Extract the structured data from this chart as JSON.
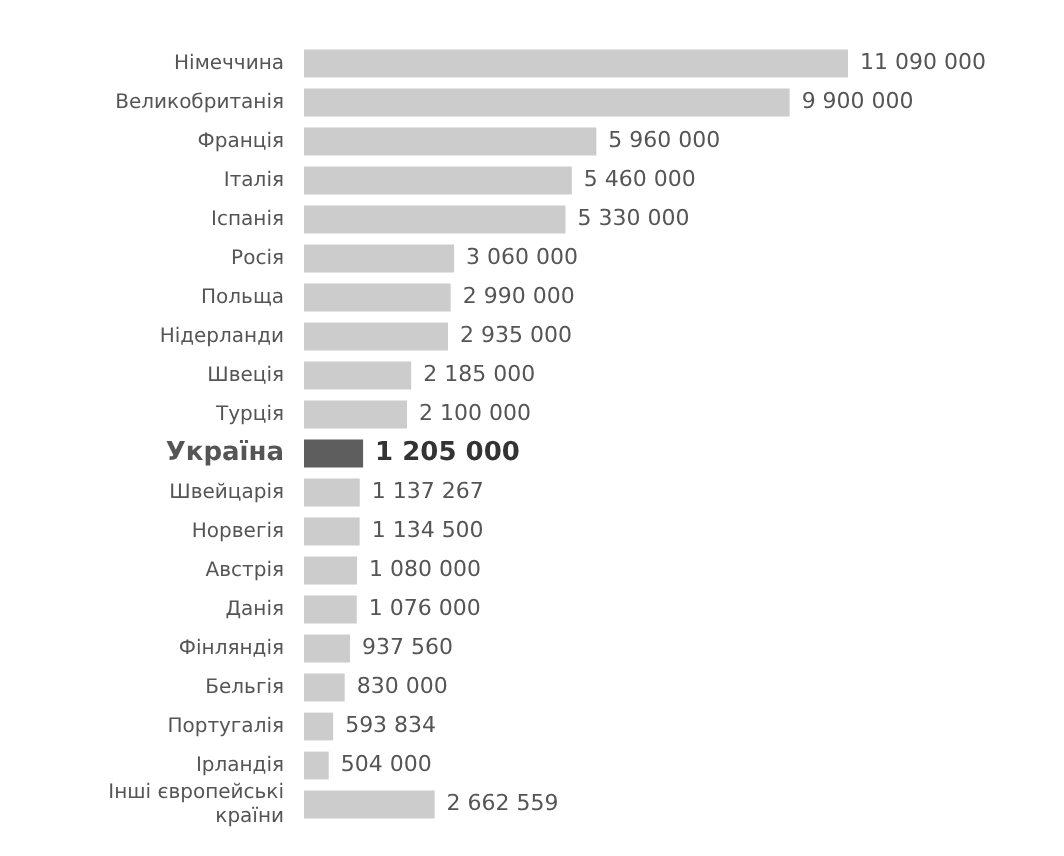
{
  "chart_data": {
    "type": "bar",
    "orientation": "horizontal",
    "categories": [
      "Німеччина",
      "Великобританія",
      "Франція",
      "Італія",
      "Іспанія",
      "Росія",
      "Польща",
      "Нідерланди",
      "Швеція",
      "Турція",
      "Україна",
      "Швейцарія",
      "Норвегія",
      "Австрія",
      "Данія",
      "Фінляндія",
      "Бельгія",
      "Португалія",
      "Ірландія",
      "Інші європейські країни"
    ],
    "values": [
      11090000,
      9900000,
      5960000,
      5460000,
      5330000,
      3060000,
      2990000,
      2935000,
      2185000,
      2100000,
      1205000,
      1137267,
      1134500,
      1080000,
      1076000,
      937560,
      830000,
      593834,
      504000,
      2662559
    ],
    "value_labels": [
      "11 090 000",
      "9 900 000",
      "5 960 000",
      "5 460 000",
      "5 330 000",
      "3 060 000",
      "2 990 000",
      "2 935 000",
      "2 185 000",
      "2 100 000",
      "1 205 000",
      "1 137 267",
      "1 134 500",
      "1 080 000",
      "1 076 000",
      "937 560",
      "830 000",
      "593 834",
      "504 000",
      "2 662 559"
    ],
    "color": "#cccccc",
    "colors": [
      "#cccccc",
      "#cccccc",
      "#cccccc",
      "#cccccc",
      "#cccccc",
      "#cccccc",
      "#cccccc",
      "#cccccc",
      "#cccccc",
      "#cccccc",
      "#5e5e5e",
      "#cccccc",
      "#cccccc",
      "#cccccc",
      "#cccccc",
      "#cccccc",
      "#cccccc",
      "#cccccc",
      "#cccccc",
      "#cccccc"
    ],
    "legend": false
  }
}
